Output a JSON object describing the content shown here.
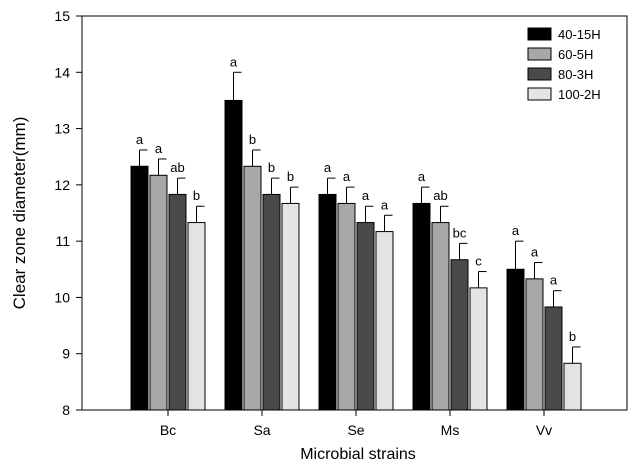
{
  "chart_data": {
    "type": "bar",
    "title": "",
    "xlabel": "Microbial strains",
    "ylabel": "Clear zone diameter(mm)",
    "ylim": [
      8,
      15
    ],
    "yticks": [
      8,
      9,
      10,
      11,
      12,
      13,
      14,
      15
    ],
    "categories": [
      "Bc",
      "Sa",
      "Se",
      "Ms",
      "Vv"
    ],
    "legend_position": "top-right",
    "grid": false,
    "series": [
      {
        "name": "40-15H",
        "color": "#000000",
        "values": [
          12.33,
          13.5,
          11.83,
          11.67,
          10.5
        ],
        "errors": [
          0.29,
          0.5,
          0.29,
          0.29,
          0.5
        ],
        "letters": [
          "a",
          "a",
          "a",
          "a",
          "a"
        ]
      },
      {
        "name": "60-5H",
        "color": "#a8a8a8",
        "values": [
          12.17,
          12.33,
          11.67,
          11.33,
          10.33
        ],
        "errors": [
          0.29,
          0.29,
          0.29,
          0.29,
          0.29
        ],
        "letters": [
          "a",
          "b",
          "a",
          "ab",
          "a"
        ]
      },
      {
        "name": "80-3H",
        "color": "#4a4a4a",
        "values": [
          11.83,
          11.83,
          11.33,
          10.67,
          9.83
        ],
        "errors": [
          0.29,
          0.29,
          0.29,
          0.29,
          0.29
        ],
        "letters": [
          "ab",
          "b",
          "a",
          "bc",
          "a"
        ]
      },
      {
        "name": "100-2H",
        "color": "#e4e4e4",
        "values": [
          11.33,
          11.67,
          11.17,
          10.17,
          8.83
        ],
        "errors": [
          0.29,
          0.29,
          0.29,
          0.29,
          0.29
        ],
        "letters": [
          "b",
          "b",
          "a",
          "c",
          "b"
        ]
      }
    ]
  }
}
